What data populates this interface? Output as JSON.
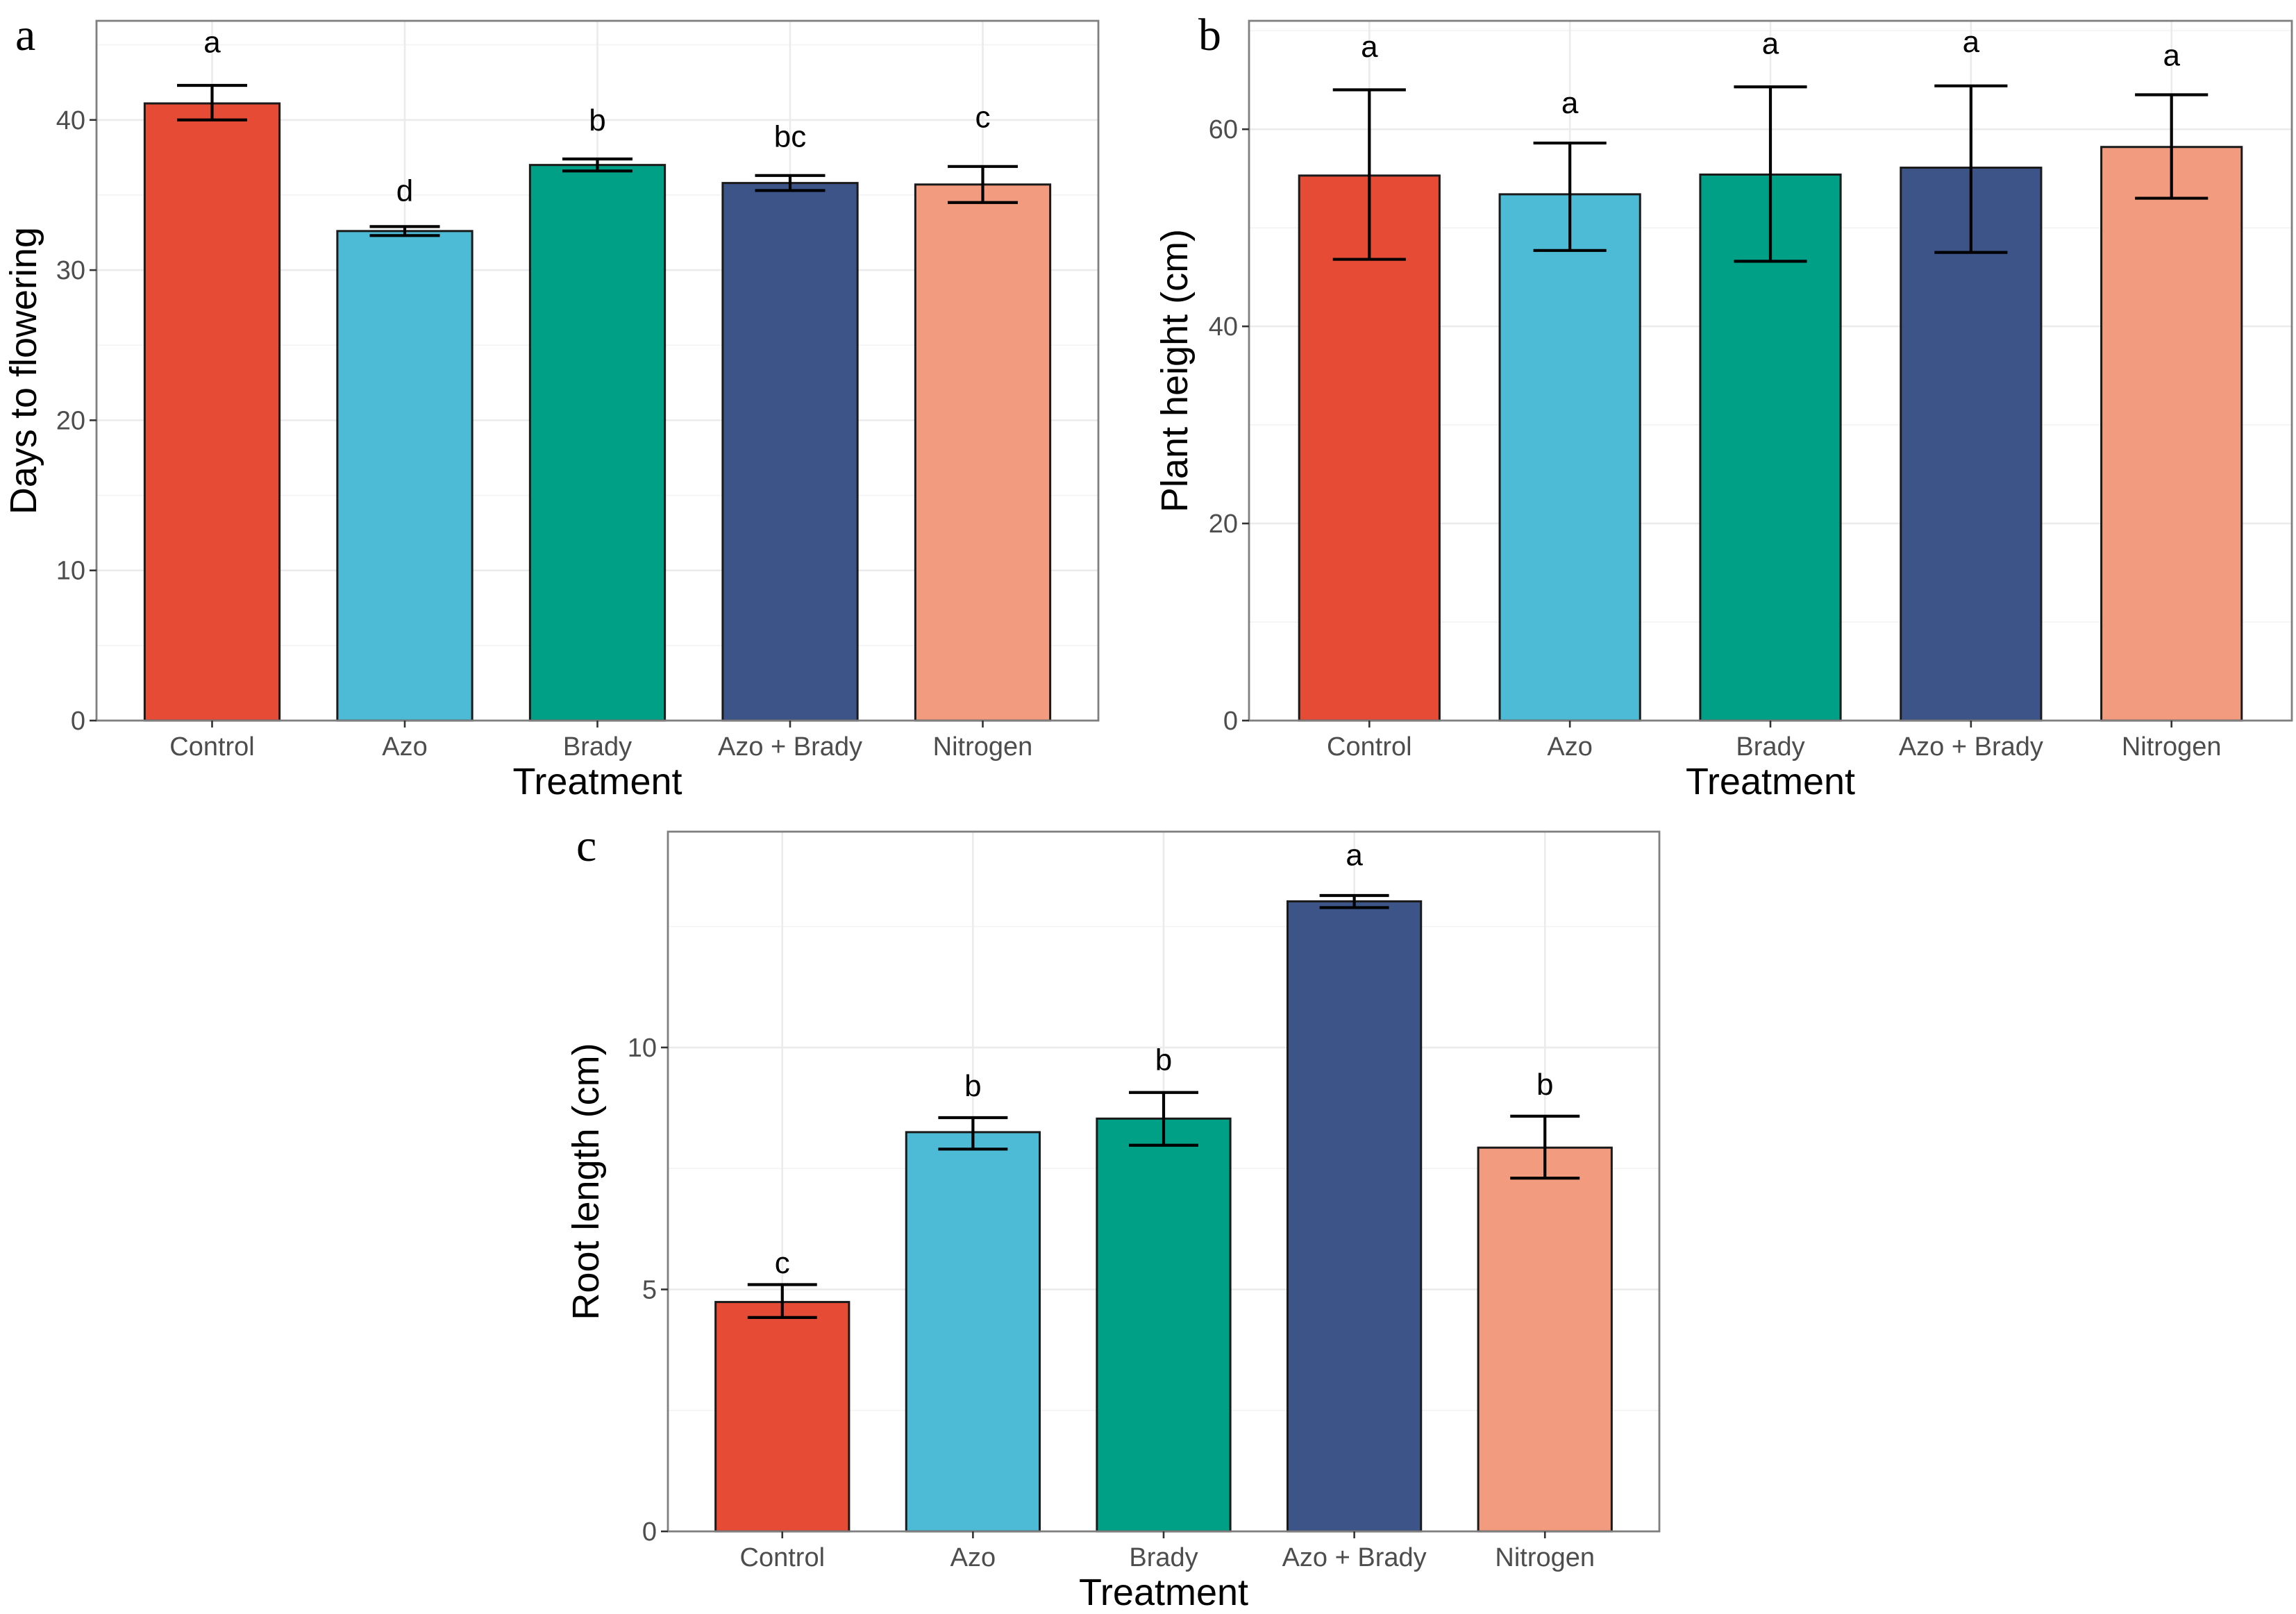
{
  "figure": {
    "panels_count": 3
  },
  "palette": {
    "Control": "#E64B35",
    "Azo": "#4DBBD5",
    "Brady": "#00A087",
    "Azo + Brady": "#3C5488",
    "Nitrogen": "#F39B7F"
  },
  "chart_data": [
    {
      "panel": "a",
      "type": "bar",
      "title": "",
      "xlabel": "Treatment",
      "ylabel": "Days to flowering",
      "categories": [
        "Control",
        "Azo",
        "Brady",
        "Azo + Brady",
        "Nitrogen"
      ],
      "values": [
        41.1,
        32.6,
        37.0,
        35.8,
        35.7
      ],
      "error_low": [
        40.0,
        32.3,
        36.6,
        35.3,
        34.5
      ],
      "error_high": [
        42.3,
        32.9,
        37.4,
        36.3,
        36.9
      ],
      "significance_letters": [
        "a",
        "d",
        "b",
        "bc",
        "c"
      ],
      "letter_y": [
        45.2,
        35.3,
        40.0,
        38.9,
        40.2
      ],
      "yticks": [
        0,
        10,
        20,
        30,
        40
      ],
      "ylim": [
        0,
        46.6
      ],
      "grid": true,
      "legend": "none"
    },
    {
      "panel": "b",
      "type": "bar",
      "title": "",
      "xlabel": "Treatment",
      "ylabel": "Plant height (cm)",
      "categories": [
        "Control",
        "Azo",
        "Brady",
        "Azo + Brady",
        "Nitrogen"
      ],
      "values": [
        55.3,
        53.4,
        55.4,
        56.1,
        58.2
      ],
      "error_low": [
        46.8,
        47.7,
        46.6,
        47.5,
        53.0
      ],
      "error_high": [
        64.0,
        58.6,
        64.3,
        64.4,
        63.5
      ],
      "significance_letters": [
        "a",
        "a",
        "a",
        "a",
        "a"
      ],
      "letter_y": [
        68.4,
        62.7,
        68.7,
        68.9,
        67.5
      ],
      "yticks": [
        0,
        20,
        40,
        60
      ],
      "ylim": [
        0,
        71.0
      ],
      "grid": true,
      "legend": "none"
    },
    {
      "panel": "c",
      "type": "bar",
      "title": "",
      "xlabel": "Treatment",
      "ylabel": "Root length (cm)",
      "categories": [
        "Control",
        "Azo",
        "Brady",
        "Azo + Brady",
        "Nitrogen"
      ],
      "values": [
        4.74,
        8.25,
        8.53,
        13.02,
        7.93
      ],
      "error_low": [
        4.42,
        7.9,
        7.98,
        12.89,
        7.3
      ],
      "error_high": [
        5.1,
        8.55,
        9.07,
        13.14,
        8.58
      ],
      "significance_letters": [
        "c",
        "b",
        "b",
        "a",
        "b"
      ],
      "letter_y": [
        5.55,
        9.21,
        9.75,
        13.98,
        9.24
      ],
      "yticks": [
        0,
        5,
        10
      ],
      "ylim": [
        0,
        14.46
      ],
      "grid": true,
      "legend": "none"
    }
  ]
}
